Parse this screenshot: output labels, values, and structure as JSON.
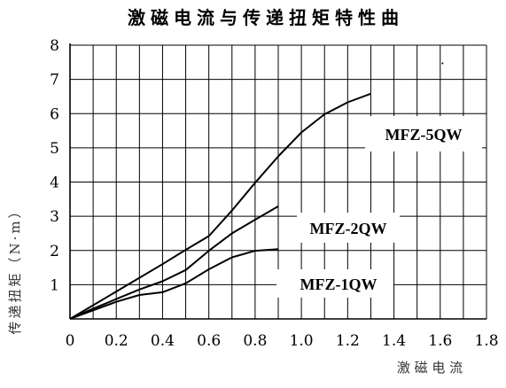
{
  "chart_data": {
    "type": "line",
    "title": "激磁电流与传递扭矩特性曲",
    "xlabel": "激 磁 电 流",
    "ylabel": "传递扭矩（N·m）",
    "xlim": [
      0,
      1.8
    ],
    "ylim": [
      0,
      8
    ],
    "x_ticks": [
      "0",
      "0.2",
      "0.4",
      "0.6",
      "0.8",
      "1.0",
      "1.2",
      "1.4",
      "1.6",
      "1.8"
    ],
    "y_ticks": [
      "1",
      "2",
      "3",
      "4",
      "5",
      "6",
      "7",
      "8"
    ],
    "grid": true,
    "series": [
      {
        "name": "MFZ-5QW",
        "points": [
          [
            0,
            0
          ],
          [
            0.1,
            0.4
          ],
          [
            0.2,
            0.8
          ],
          [
            0.3,
            1.2
          ],
          [
            0.4,
            1.6
          ],
          [
            0.5,
            2.02
          ],
          [
            0.6,
            2.42
          ],
          [
            0.7,
            3.17
          ],
          [
            0.8,
            3.98
          ],
          [
            0.9,
            4.75
          ],
          [
            1.0,
            5.45
          ],
          [
            1.1,
            5.98
          ],
          [
            1.2,
            6.33
          ],
          [
            1.3,
            6.58
          ]
        ]
      },
      {
        "name": "MFZ-2QW",
        "points": [
          [
            0,
            0
          ],
          [
            0.1,
            0.3
          ],
          [
            0.2,
            0.58
          ],
          [
            0.3,
            0.86
          ],
          [
            0.4,
            1.1
          ],
          [
            0.5,
            1.43
          ],
          [
            0.6,
            1.99
          ],
          [
            0.7,
            2.5
          ],
          [
            0.8,
            2.9
          ],
          [
            0.9,
            3.29
          ]
        ]
      },
      {
        "name": "MFZ-1QW",
        "points": [
          [
            0,
            0
          ],
          [
            0.1,
            0.25
          ],
          [
            0.2,
            0.5
          ],
          [
            0.3,
            0.7
          ],
          [
            0.4,
            0.78
          ],
          [
            0.5,
            1.04
          ],
          [
            0.6,
            1.45
          ],
          [
            0.7,
            1.8
          ],
          [
            0.8,
            1.99
          ],
          [
            0.9,
            2.04
          ]
        ]
      }
    ]
  }
}
